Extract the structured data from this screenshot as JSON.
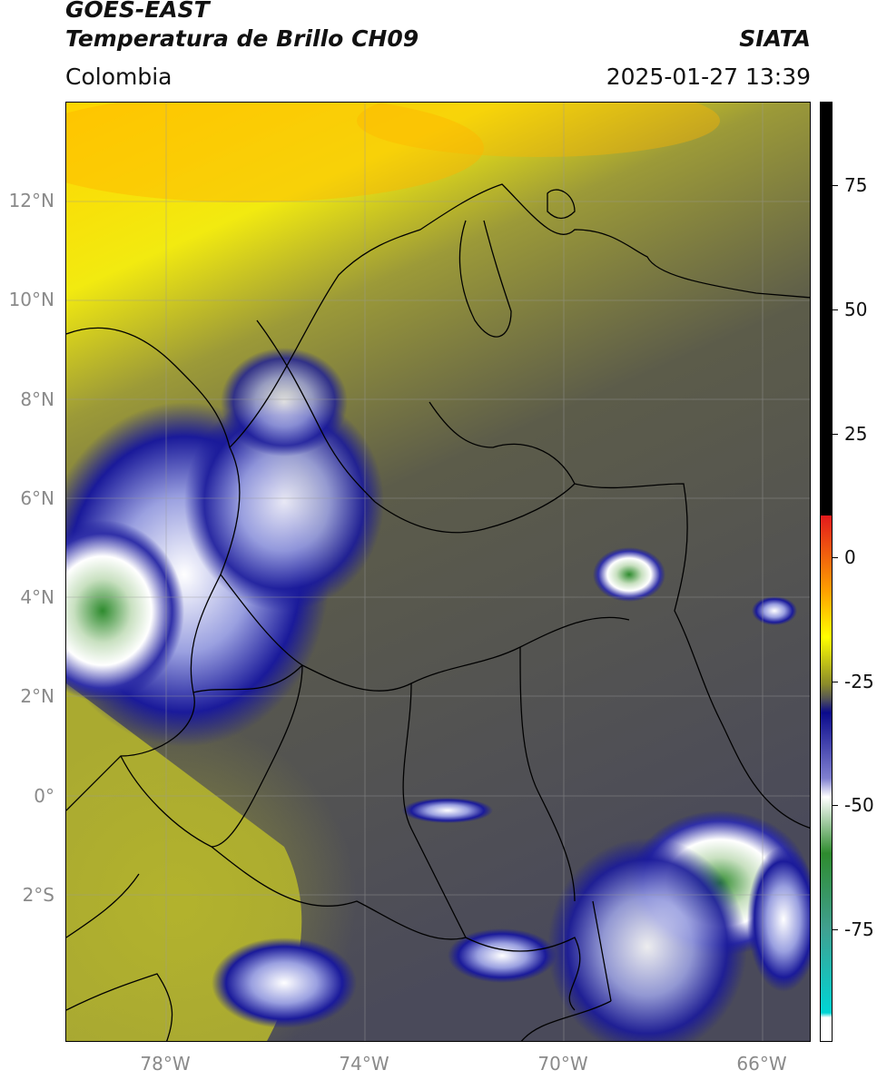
{
  "header": {
    "line1": "GOES-EAST",
    "line2": "Temperatura de Brillo CH09",
    "brand": "SIATA",
    "region": "Colombia",
    "timestamp": "2025-01-27 13:39"
  },
  "map": {
    "lat_ticks": [
      "12°N",
      "10°N",
      "8°N",
      "6°N",
      "4°N",
      "2°N",
      "0°",
      "2°S"
    ],
    "lon_ticks": [
      "78°W",
      "74°W",
      "70°W",
      "66°W"
    ],
    "extent": {
      "lon_min": -80,
      "lon_max": -65,
      "lat_min": -5,
      "lat_max": 14
    }
  },
  "colorbar": {
    "labels": [
      "75",
      "50",
      "25",
      "0",
      "-25",
      "-50",
      "-75"
    ],
    "range": [
      -95,
      90
    ],
    "colors": {
      "black": "#000000",
      "red": "#e31a1c",
      "orange": "#ff9f00",
      "yellow": "#ffff00",
      "olive": "#8a8a2a",
      "navy": "#0a0a8c",
      "white": "#ffffff",
      "green": "#2e8b2e",
      "cyan": "#00d5d5"
    }
  }
}
